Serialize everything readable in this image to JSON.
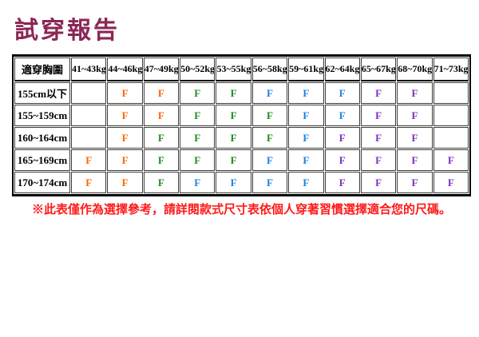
{
  "title": "試穿報告",
  "table": {
    "corner_header": "適穿胸圍",
    "weight_headers": [
      "41~43kg",
      "44~46kg",
      "47~49kg",
      "50~52kg",
      "53~55kg",
      "56~58kg",
      "59~61kg",
      "62~64kg",
      "65~67kg",
      "68~70kg",
      "71~73kg"
    ],
    "cell_text": "F",
    "rows": [
      {
        "label": "155cm以下",
        "cells": [
          "",
          "orange",
          "orange",
          "green",
          "green",
          "blue",
          "blue",
          "blue",
          "purple",
          "purple",
          ""
        ]
      },
      {
        "label": "155~159cm",
        "cells": [
          "",
          "orange",
          "orange",
          "green",
          "green",
          "green",
          "blue",
          "blue",
          "purple",
          "purple",
          ""
        ]
      },
      {
        "label": "160~164cm",
        "cells": [
          "",
          "orange",
          "green",
          "green",
          "green",
          "green",
          "blue",
          "purple",
          "purple",
          "purple",
          ""
        ]
      },
      {
        "label": "165~169cm",
        "cells": [
          "orange",
          "orange",
          "green",
          "green",
          "green",
          "blue",
          "blue",
          "purple",
          "purple",
          "purple",
          "purple"
        ]
      },
      {
        "label": "170~174cm",
        "cells": [
          "orange",
          "orange",
          "green",
          "blue",
          "blue",
          "blue",
          "blue",
          "purple",
          "purple",
          "purple",
          "purple"
        ]
      }
    ]
  },
  "note": "※此表僅作為選擇參考，請詳閱款式尺寸表依個人穿著習慣選擇適合您的尺碼。",
  "colors": {
    "title": "#8B2655",
    "note": "#FF1A1A",
    "f_orange": "#FF6600",
    "f_green": "#1E8B22",
    "f_blue": "#1E82E0",
    "f_purple": "#7B2FBF"
  }
}
